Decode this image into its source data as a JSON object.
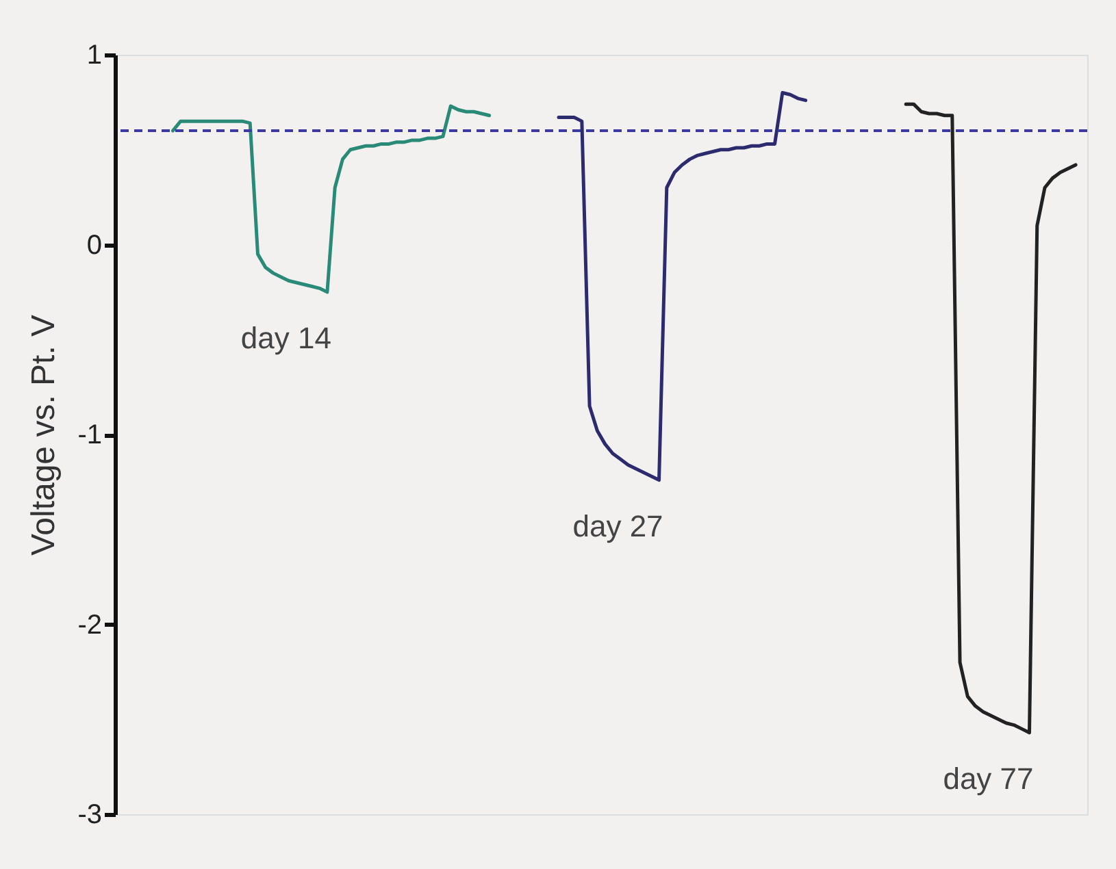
{
  "chart_data": {
    "type": "line",
    "ylabel": "Voltage vs. Pt. V",
    "categories": [
      null,
      null,
      null,
      null,
      null,
      null,
      null,
      null,
      null,
      null,
      null,
      null,
      null,
      null,
      null,
      null,
      null,
      null,
      null,
      null,
      null,
      null,
      null,
      null,
      null,
      null,
      null,
      null,
      null,
      null,
      null,
      null,
      null,
      null,
      null,
      null,
      null,
      null,
      null,
      null,
      null,
      null,
      null,
      null,
      null,
      null,
      null,
      null,
      null,
      null,
      null,
      null,
      null,
      null,
      null,
      null,
      null,
      null,
      null,
      null,
      null,
      null,
      null,
      null,
      null,
      null,
      null,
      null,
      null,
      null,
      null,
      null,
      null,
      null,
      null,
      null,
      null,
      null,
      null,
      null,
      null,
      null,
      null,
      null,
      null,
      null,
      null,
      null,
      null,
      null,
      null,
      null,
      null,
      null,
      null,
      null,
      null,
      null,
      null,
      null,
      null,
      null,
      null,
      null,
      null,
      null,
      null,
      null,
      null,
      null,
      null,
      null,
      null,
      null,
      null,
      null,
      null,
      null,
      null,
      null,
      null,
      null,
      null,
      null,
      null,
      null
    ],
    "series": [
      {
        "name": "day 14",
        "color": "#2a8a78",
        "values": [
          null,
          null,
          null,
          null,
          null,
          null,
          null,
          0.6,
          0.65,
          0.65,
          0.65,
          0.65,
          0.65,
          0.65,
          0.65,
          0.65,
          0.65,
          0.64,
          -0.05,
          -0.12,
          -0.15,
          -0.17,
          -0.19,
          -0.2,
          -0.21,
          -0.22,
          -0.23,
          -0.25,
          0.3,
          0.45,
          0.5,
          0.51,
          0.52,
          0.52,
          0.53,
          0.53,
          0.54,
          0.54,
          0.55,
          0.55,
          0.56,
          0.56,
          0.57,
          0.73,
          0.71,
          0.7,
          0.7,
          0.69,
          0.68,
          null,
          null,
          null,
          null,
          null,
          null,
          null,
          null,
          null,
          null,
          null,
          null,
          null,
          null,
          null,
          null,
          null,
          null,
          null,
          null,
          null,
          null,
          null,
          null,
          null,
          null,
          null,
          null,
          null,
          null,
          null,
          null,
          null,
          null,
          null,
          null,
          null,
          null,
          null,
          null,
          null,
          null,
          null,
          null,
          null,
          null,
          null,
          null,
          null,
          null,
          null,
          null,
          null,
          null,
          null,
          null,
          null,
          null,
          null,
          null,
          null,
          null,
          null,
          null,
          null,
          null,
          null,
          null,
          null,
          null,
          null,
          null,
          null,
          null,
          null,
          null,
          null
        ]
      },
      {
        "name": "day 27",
        "color": "#2b2b6e",
        "values": [
          null,
          null,
          null,
          null,
          null,
          null,
          null,
          null,
          null,
          null,
          null,
          null,
          null,
          null,
          null,
          null,
          null,
          null,
          null,
          null,
          null,
          null,
          null,
          null,
          null,
          null,
          null,
          null,
          null,
          null,
          null,
          null,
          null,
          null,
          null,
          null,
          null,
          null,
          null,
          null,
          null,
          null,
          null,
          null,
          null,
          null,
          null,
          null,
          null,
          null,
          null,
          null,
          null,
          null,
          null,
          null,
          null,
          0.67,
          0.67,
          0.67,
          0.65,
          -0.85,
          -0.98,
          -1.05,
          -1.1,
          -1.13,
          -1.16,
          -1.18,
          -1.2,
          -1.22,
          -1.24,
          0.3,
          0.38,
          0.42,
          0.45,
          0.47,
          0.48,
          0.49,
          0.5,
          0.5,
          0.51,
          0.51,
          0.52,
          0.52,
          0.53,
          0.53,
          0.8,
          0.79,
          0.77,
          0.76,
          null,
          null,
          null,
          null,
          null,
          null,
          null,
          null,
          null,
          null,
          null,
          null,
          null,
          null,
          null,
          null,
          null,
          null,
          null,
          null,
          null,
          null,
          null,
          null,
          null,
          null,
          null,
          null,
          null,
          null,
          null,
          null,
          null,
          null,
          null,
          null
        ]
      },
      {
        "name": "day 77",
        "color": "#222222",
        "values": [
          null,
          null,
          null,
          null,
          null,
          null,
          null,
          null,
          null,
          null,
          null,
          null,
          null,
          null,
          null,
          null,
          null,
          null,
          null,
          null,
          null,
          null,
          null,
          null,
          null,
          null,
          null,
          null,
          null,
          null,
          null,
          null,
          null,
          null,
          null,
          null,
          null,
          null,
          null,
          null,
          null,
          null,
          null,
          null,
          null,
          null,
          null,
          null,
          null,
          null,
          null,
          null,
          null,
          null,
          null,
          null,
          null,
          null,
          null,
          null,
          null,
          null,
          null,
          null,
          null,
          null,
          null,
          null,
          null,
          null,
          null,
          null,
          null,
          null,
          null,
          null,
          null,
          null,
          null,
          null,
          null,
          null,
          null,
          null,
          null,
          null,
          null,
          null,
          null,
          null,
          null,
          null,
          null,
          null,
          null,
          null,
          null,
          null,
          null,
          null,
          null,
          null,
          0.74,
          0.74,
          0.7,
          0.69,
          0.69,
          0.68,
          0.68,
          -2.2,
          -2.38,
          -2.43,
          -2.46,
          -2.48,
          -2.5,
          -2.52,
          -2.53,
          -2.55,
          -2.57,
          0.1,
          0.3,
          0.35,
          0.38,
          0.4,
          0.42,
          null
        ]
      }
    ],
    "ylim": [
      -3,
      1
    ],
    "yticks": [
      -3,
      -2,
      -1,
      0,
      1
    ],
    "tick_labels": "y",
    "grid": false,
    "ref_lines": [
      {
        "axis": "y",
        "value": 0.6,
        "color": "#3a3aa0",
        "line_style": "dashed"
      }
    ]
  }
}
